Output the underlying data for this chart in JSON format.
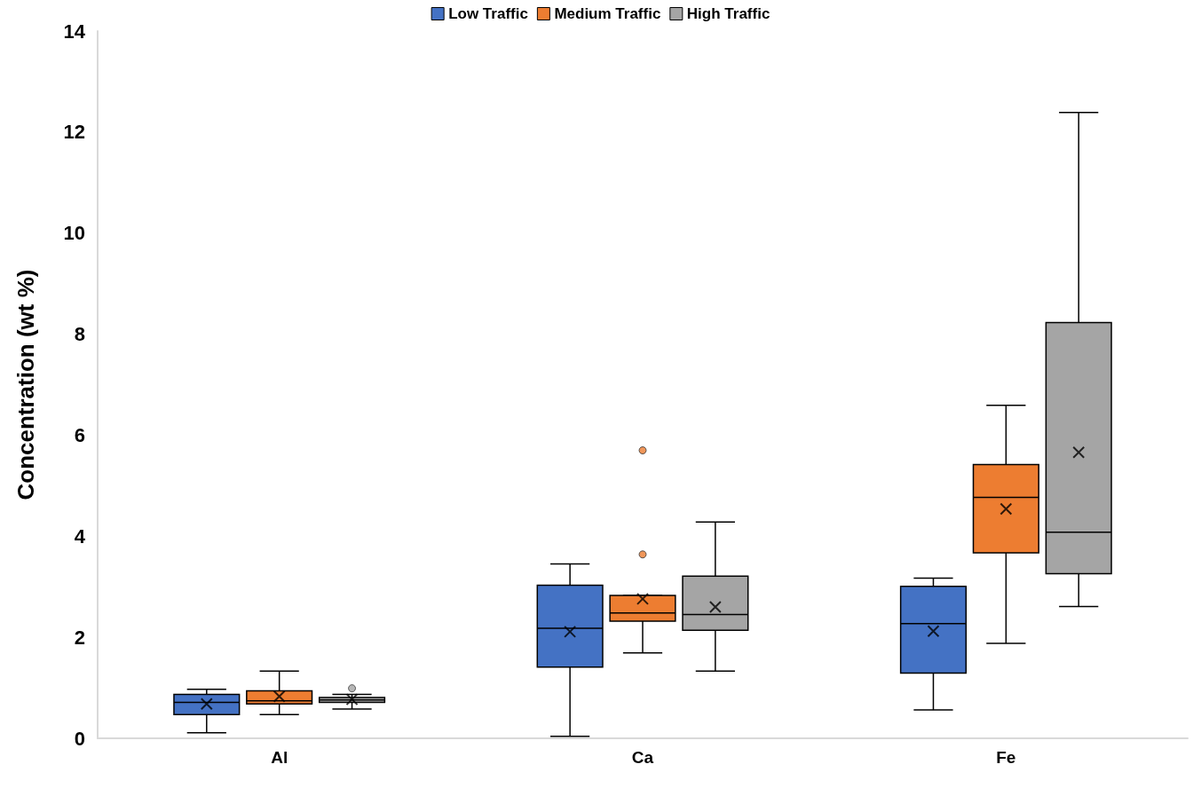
{
  "chart_data": {
    "type": "box",
    "ylabel": "Concentration (wt %)",
    "categories": [
      "Al",
      "Ca",
      "Fe"
    ],
    "ylim": [
      0,
      14
    ],
    "yticks": [
      0,
      2,
      4,
      6,
      8,
      10,
      12,
      14
    ],
    "grid": false,
    "legend": "top",
    "series": [
      {
        "name": "Low Traffic",
        "color": "#4472c4",
        "boxes": [
          {
            "low": 0.11,
            "q1": 0.47,
            "median": 0.71,
            "q3": 0.87,
            "high": 0.97,
            "mean": 0.68
          },
          {
            "low": 0.04,
            "q1": 1.41,
            "median": 2.18,
            "q3": 3.03,
            "high": 3.45,
            "mean": 2.11
          },
          {
            "low": 0.56,
            "q1": 1.29,
            "median": 2.27,
            "q3": 3.01,
            "high": 3.17,
            "mean": 2.12
          }
        ]
      },
      {
        "name": "Medium Traffic",
        "color": "#ed7d31",
        "boxes": [
          {
            "low": 0.47,
            "q1": 0.68,
            "median": 0.74,
            "q3": 0.94,
            "high": 1.33,
            "mean": 0.83
          },
          {
            "low": 1.69,
            "q1": 2.32,
            "median": 2.48,
            "q3": 2.83,
            "high": 2.83,
            "mean": 2.76,
            "outliers": [
              3.64,
              5.7
            ]
          },
          {
            "low": 1.88,
            "q1": 3.67,
            "median": 4.77,
            "q3": 5.42,
            "high": 6.59,
            "mean": 4.54
          }
        ]
      },
      {
        "name": "High Traffic",
        "color": "#a5a5a5",
        "boxes": [
          {
            "low": 0.58,
            "q1": 0.71,
            "median": 0.76,
            "q3": 0.81,
            "high": 0.87,
            "mean": 0.77,
            "outliers": [
              0.99
            ]
          },
          {
            "low": 1.33,
            "q1": 2.14,
            "median": 2.45,
            "q3": 3.21,
            "high": 4.28,
            "mean": 2.6
          },
          {
            "low": 2.61,
            "q1": 3.26,
            "median": 4.08,
            "q3": 8.23,
            "high": 12.39,
            "mean": 5.66
          }
        ]
      }
    ]
  }
}
